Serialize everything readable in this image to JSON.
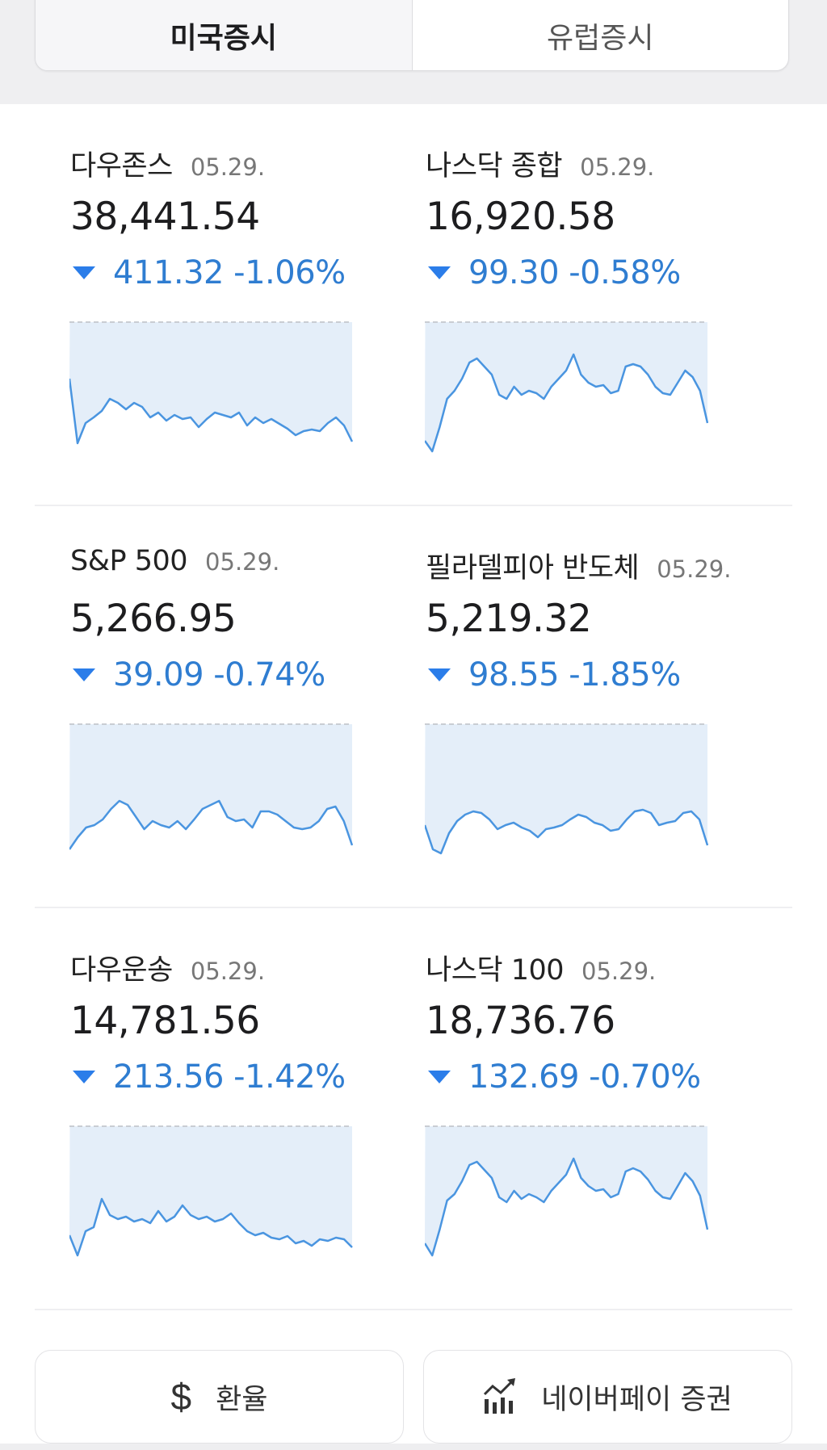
{
  "tabs": [
    {
      "label": "미국증시",
      "active": true
    },
    {
      "label": "유럽증시",
      "active": false
    }
  ],
  "colors": {
    "down": "#2f7dd1",
    "down_arrow": "#2b7de9",
    "chart_fill": "#e4eef9",
    "chart_line": "#4a95e0",
    "baseline_dash": "#c9cdd3"
  },
  "indices": [
    {
      "name": "다우존스",
      "date": "05.29.",
      "value": "38,441.54",
      "direction": "down",
      "change": "411.32 -1.06%"
    },
    {
      "name": "나스닥 종합",
      "date": "05.29.",
      "value": "16,920.58",
      "direction": "down",
      "change": "99.30 -0.58%"
    },
    {
      "name": "S&P 500",
      "date": "05.29.",
      "value": "5,266.95",
      "direction": "down",
      "change": "39.09 -0.74%"
    },
    {
      "name": "필라델피아 반도체",
      "date": "05.29.",
      "value": "5,219.32",
      "direction": "down",
      "change": "98.55 -1.85%"
    },
    {
      "name": "다우운송",
      "date": "05.29.",
      "value": "14,781.56",
      "direction": "down",
      "change": "213.56 -1.42%"
    },
    {
      "name": "나스닥 100",
      "date": "05.29.",
      "value": "18,736.76",
      "direction": "down",
      "change": "132.69 -0.70%"
    }
  ],
  "footer": {
    "exchange_label": "환율",
    "exchange_icon": "dollar-icon",
    "securities_label": "네이버페이 증권",
    "securities_icon": "chart-trend-icon"
  },
  "chart_data": [
    {
      "type": "line",
      "title": "다우존스",
      "baseline": "previous close (dashed, top)",
      "y_inverted_px_below_baseline": true,
      "values": [
        70,
        150,
        125,
        118,
        110,
        95,
        100,
        108,
        100,
        105,
        118,
        112,
        122,
        115,
        120,
        118,
        130,
        120,
        112,
        115,
        118,
        112,
        128,
        118,
        125,
        120,
        126,
        132,
        140,
        135,
        133,
        135,
        125,
        118,
        128,
        148
      ]
    },
    {
      "type": "line",
      "title": "나스닥 종합",
      "baseline": "previous close (dashed, top)",
      "y_inverted_px_below_baseline": true,
      "values": [
        147,
        160,
        130,
        95,
        85,
        70,
        50,
        45,
        55,
        65,
        90,
        95,
        80,
        90,
        85,
        88,
        95,
        80,
        70,
        60,
        40,
        65,
        75,
        80,
        78,
        88,
        85,
        55,
        52,
        55,
        65,
        80,
        88,
        90,
        75,
        60,
        68,
        85,
        125
      ]
    },
    {
      "type": "line",
      "title": "S&P 500",
      "baseline": "previous close (dashed, top)",
      "y_inverted_px_below_baseline": true,
      "values": [
        155,
        140,
        128,
        125,
        118,
        105,
        95,
        100,
        115,
        130,
        120,
        125,
        128,
        120,
        130,
        118,
        105,
        100,
        95,
        115,
        120,
        118,
        128,
        108,
        108,
        112,
        120,
        128,
        130,
        128,
        120,
        105,
        102,
        120,
        150
      ]
    },
    {
      "type": "line",
      "title": "필라델피아 반도체",
      "baseline": "previous close (dashed, top)",
      "y_inverted_px_below_baseline": true,
      "values": [
        125,
        155,
        160,
        135,
        120,
        112,
        108,
        110,
        118,
        130,
        125,
        122,
        128,
        132,
        140,
        130,
        128,
        125,
        118,
        112,
        115,
        122,
        125,
        132,
        130,
        118,
        108,
        106,
        110,
        125,
        122,
        120,
        110,
        108,
        118,
        150
      ]
    },
    {
      "type": "line",
      "title": "다우운송",
      "baseline": "previous close (dashed, top)",
      "y_inverted_px_below_baseline": true,
      "values": [
        135,
        160,
        130,
        125,
        90,
        110,
        115,
        112,
        118,
        115,
        120,
        105,
        118,
        112,
        98,
        110,
        115,
        112,
        118,
        115,
        108,
        120,
        130,
        135,
        132,
        138,
        140,
        136,
        145,
        142,
        148,
        140,
        142,
        138,
        140,
        150
      ]
    },
    {
      "type": "line",
      "title": "나스닥 100",
      "baseline": "previous close (dashed, top)",
      "y_inverted_px_below_baseline": true,
      "values": [
        145,
        160,
        128,
        92,
        84,
        68,
        48,
        44,
        54,
        64,
        88,
        94,
        80,
        90,
        84,
        88,
        94,
        80,
        70,
        60,
        40,
        64,
        74,
        80,
        78,
        88,
        84,
        56,
        52,
        56,
        66,
        80,
        88,
        90,
        74,
        58,
        68,
        86,
        128
      ]
    }
  ]
}
